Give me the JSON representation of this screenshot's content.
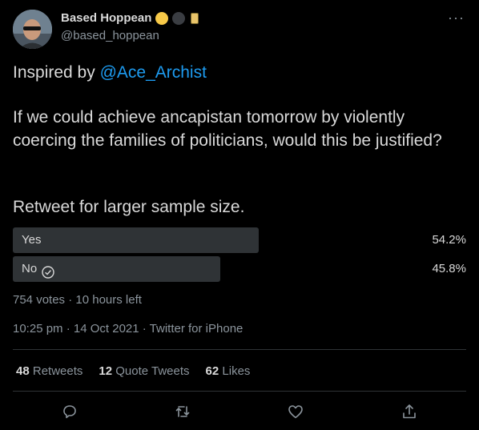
{
  "author": {
    "display_name": "Based Hoppean",
    "handle": "@based_hoppean",
    "badges": [
      "gold-circle-badge",
      "dark-circle-badge",
      "yellow-card-badge"
    ]
  },
  "tweet": {
    "line1_prefix": "Inspired by ",
    "mention": "@Ace_Archist",
    "question": "If we could achieve ancapistan tomorrow by violently coercing the families of politicians, would this be justified?",
    "cta": "Retweet for larger sample size."
  },
  "poll": {
    "options": [
      {
        "label": "Yes",
        "percent_text": "54.2%",
        "percent": 54.2,
        "voted": false
      },
      {
        "label": "No",
        "percent_text": "45.8%",
        "percent": 45.8,
        "voted": true
      }
    ],
    "summary": "754 votes · 10 hours left"
  },
  "timestamp": "10:25 pm · 14 Oct 2021 · Twitter for iPhone",
  "stats": {
    "retweets_count": "48",
    "retweets_label": "Retweets",
    "quotes_count": "12",
    "quotes_label": "Quote Tweets",
    "likes_count": "62",
    "likes_label": "Likes"
  },
  "actions": [
    "reply-icon",
    "retweet-icon",
    "like-icon",
    "share-icon"
  ],
  "colors": {
    "background": "#000000",
    "text": "#d9d9d9",
    "muted": "#8b949c",
    "link": "#1d9bf0",
    "poll_bar": "#2f3336"
  }
}
